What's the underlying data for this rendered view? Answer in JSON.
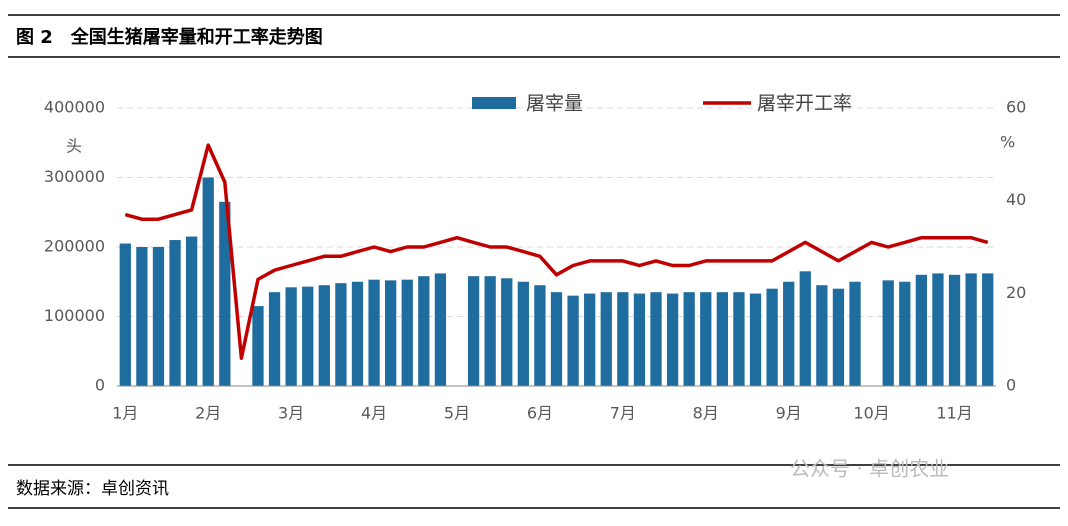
{
  "chart_data": {
    "type": "bar-line",
    "title": "图 2　全国生猪屠宰量和开工率走势图",
    "source": "数据来源：卓创资讯",
    "watermark": "公众号 · 卓创农业",
    "y_label": "头",
    "y2_label": "%",
    "categories": [
      "1月",
      null,
      null,
      null,
      null,
      "2月",
      null,
      null,
      null,
      null,
      "3月",
      null,
      null,
      null,
      null,
      "4月",
      null,
      null,
      null,
      null,
      "5月",
      null,
      null,
      null,
      null,
      "6月",
      null,
      null,
      null,
      null,
      "7月",
      null,
      null,
      null,
      null,
      "8月",
      null,
      null,
      null,
      null,
      "9月",
      null,
      null,
      null,
      null,
      "10月",
      null,
      null,
      null,
      null,
      "11月",
      null,
      null
    ],
    "series": [
      {
        "name": "屠宰量",
        "type": "bar",
        "color": "#1f6d9e",
        "values": [
          205000,
          200000,
          200000,
          210000,
          215000,
          300000,
          265000,
          null,
          115000,
          135000,
          142000,
          143000,
          145000,
          148000,
          150000,
          153000,
          152000,
          153000,
          158000,
          162000,
          null,
          158000,
          158000,
          155000,
          150000,
          145000,
          135000,
          130000,
          133000,
          135000,
          135000,
          133000,
          135000,
          133000,
          135000,
          135000,
          135000,
          135000,
          133000,
          140000,
          150000,
          165000,
          145000,
          140000,
          150000,
          null,
          152000,
          150000,
          160000,
          162000,
          160000,
          162000,
          162000
        ]
      },
      {
        "name": "屠宰开工率",
        "type": "line",
        "axis": "y2",
        "color": "#c00000",
        "values": [
          37,
          36,
          36,
          37,
          38,
          52,
          44,
          6,
          23,
          25,
          26,
          27,
          28,
          28,
          29,
          30,
          29,
          30,
          30,
          31,
          32,
          31,
          30,
          30,
          29,
          28,
          24,
          26,
          27,
          27,
          27,
          26,
          27,
          26,
          26,
          27,
          27,
          27,
          27,
          27,
          29,
          31,
          29,
          27,
          29,
          31,
          30,
          31,
          32,
          32,
          32,
          32,
          31
        ]
      }
    ],
    "ylim": [
      0,
      400000
    ],
    "yticks": [
      0,
      100000,
      200000,
      300000,
      400000
    ],
    "y2lim": [
      0,
      60
    ],
    "y2ticks": [
      0,
      20,
      40,
      60
    ],
    "grid": true,
    "legend": "top"
  }
}
